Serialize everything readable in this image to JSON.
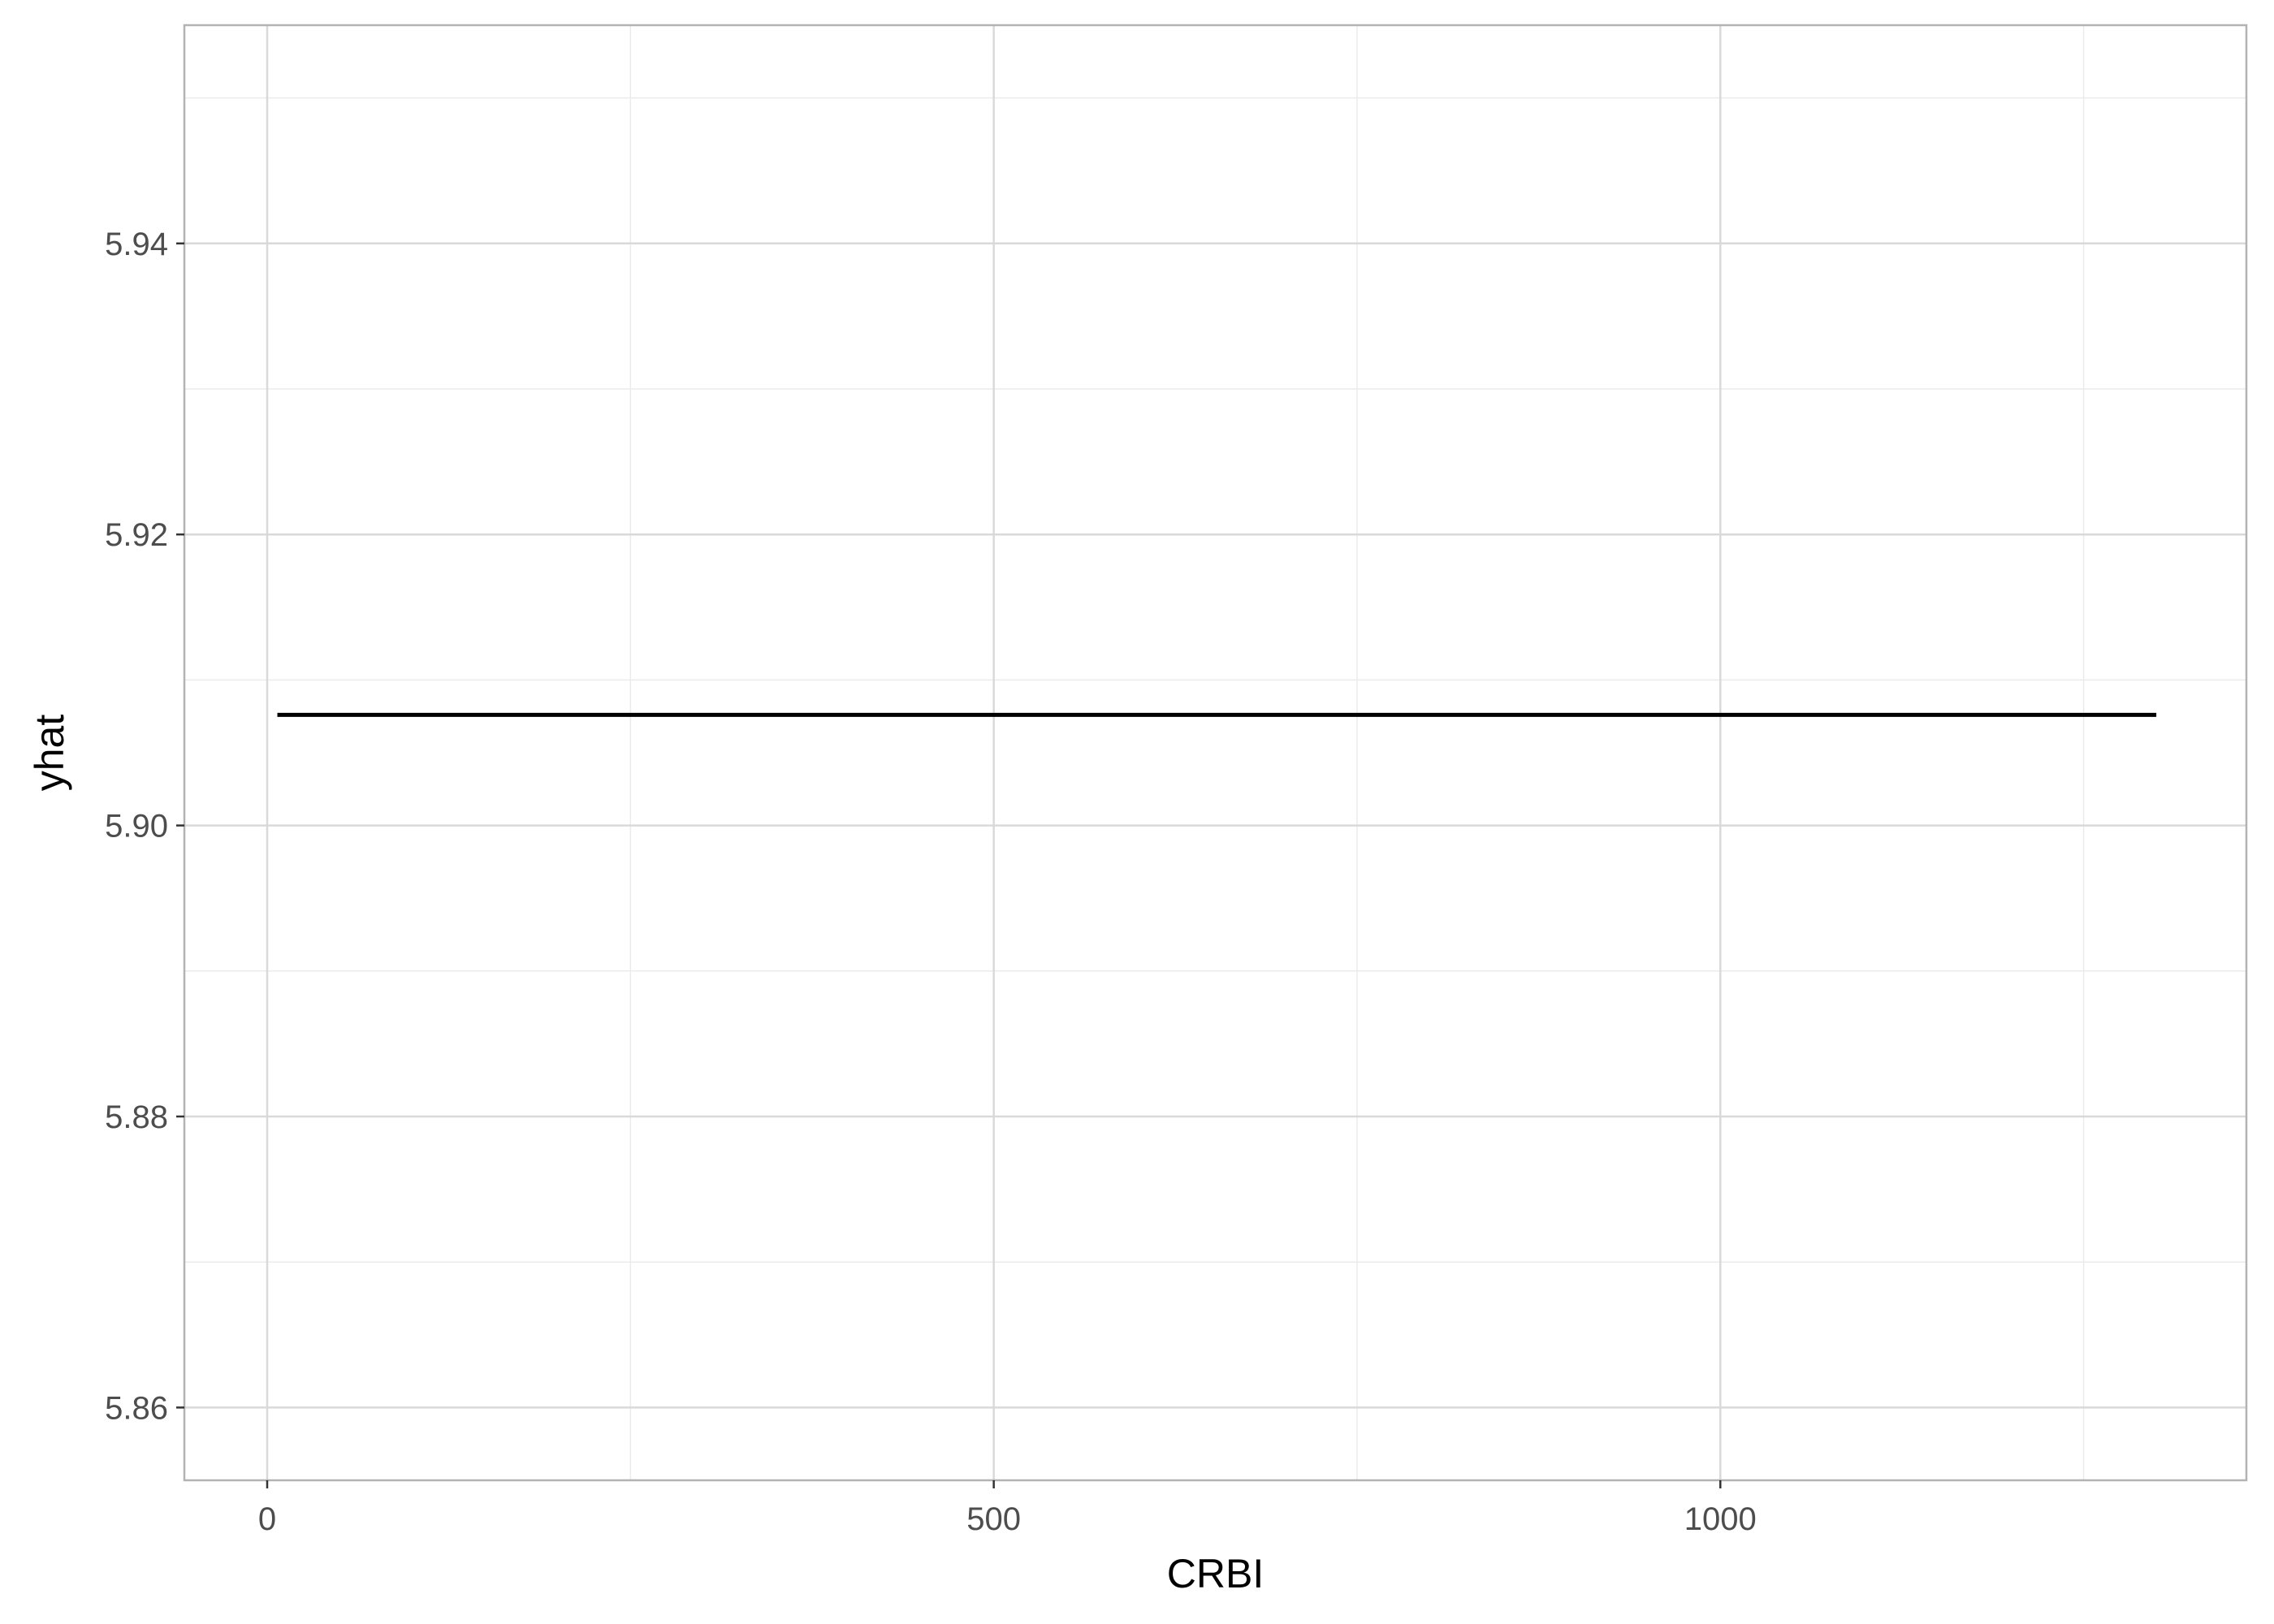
{
  "chart_data": {
    "type": "line",
    "title": "",
    "xlabel": "CRBI",
    "ylabel": "yhat",
    "xlim": [
      -57,
      1362
    ],
    "ylim": [
      5.855,
      5.955
    ],
    "x_ticks": [
      0,
      500,
      1000
    ],
    "x_tick_labels": [
      "0",
      "500",
      "1000"
    ],
    "y_ticks": [
      5.86,
      5.88,
      5.9,
      5.92,
      5.94
    ],
    "y_tick_labels": [
      "5.86",
      "5.88",
      "5.90",
      "5.92",
      "5.94"
    ],
    "x_minor_ticks": [
      250,
      750,
      1250
    ],
    "y_minor_ticks": [
      5.87,
      5.89,
      5.91,
      5.93,
      5.95
    ],
    "grid": true,
    "series": [
      {
        "color": "#000000",
        "x": [
          7,
          1300
        ],
        "y": [
          5.9076,
          5.9076
        ]
      }
    ],
    "colors": {
      "panel_border": "#b3b3b3",
      "grid_major": "#d9d9d9",
      "grid_minor": "#ebebeb",
      "line": "#000000",
      "tick_text": "#4d4d4d"
    }
  }
}
